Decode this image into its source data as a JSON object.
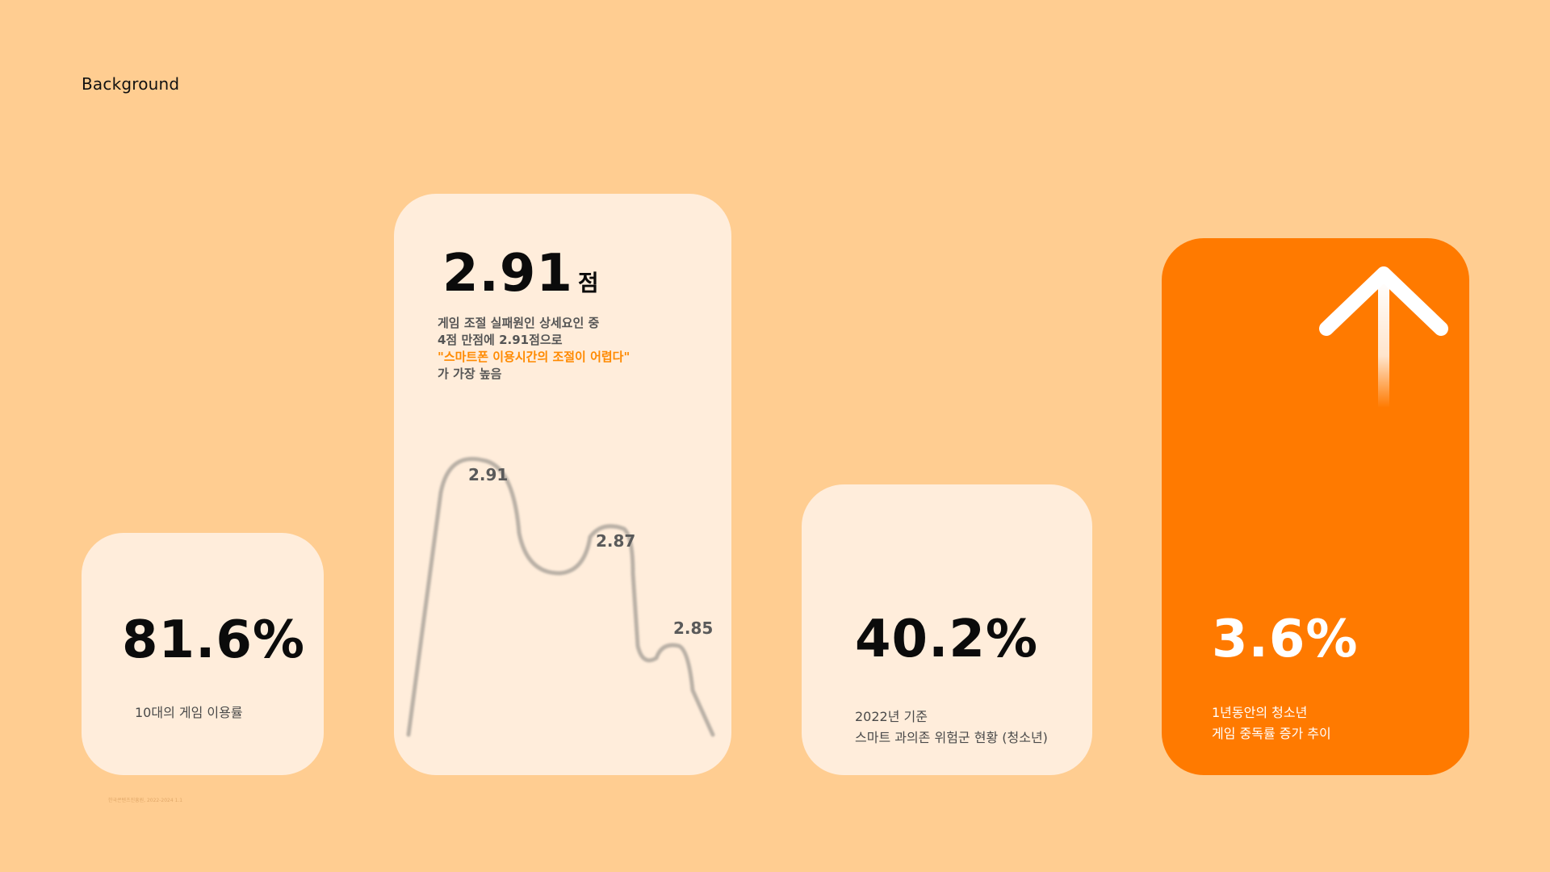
{
  "heading": "Background",
  "source_note": "한국콘텐츠진흥원, 2022-2024 1.1",
  "cards": {
    "usage": {
      "value": "81.6%",
      "label": "10대의 게임 이용률"
    },
    "score": {
      "value_number": "2.91",
      "value_unit": "점",
      "desc_line1": "게임 조절 실패원인 상세요인 중",
      "desc_line2": "4점 만점에 2.91점으로",
      "desc_highlight": "\"스마트폰 이용시간의 조절이 어렵다\"",
      "desc_line4": "가 가장 높음",
      "curve_labels": [
        "2.91",
        "2.87",
        "2.85"
      ]
    },
    "risk": {
      "value": "40.2%",
      "label_line1": "2022년 기준",
      "label_line2": "스마트 과의존 위험군 현황 (청소년)"
    },
    "increase": {
      "value": "3.6%",
      "label_line1": "1년동안의 청소년",
      "label_line2": "게임 중독률 증가 추이",
      "icon": "arrow-up-icon"
    }
  },
  "colors": {
    "background": "#FFCD91",
    "card": "#FFEDDB",
    "accent": "#FF7A00",
    "highlight_text": "#FF8A00"
  }
}
